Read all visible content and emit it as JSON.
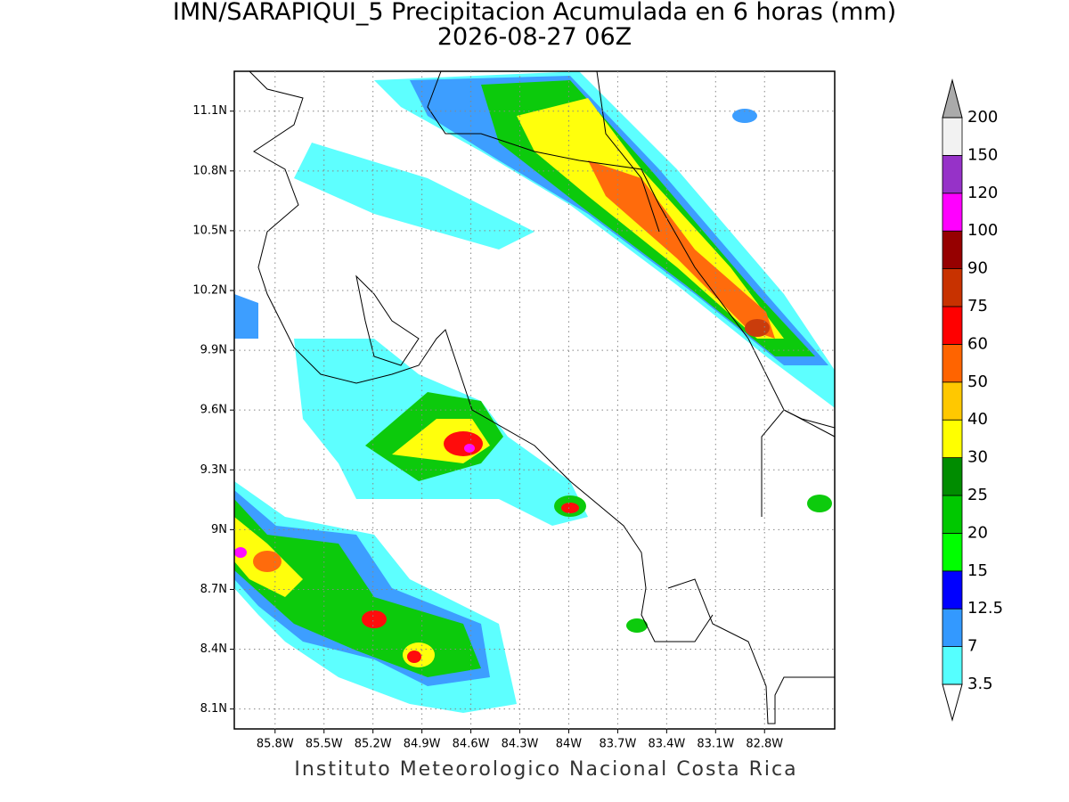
{
  "title": "IMN/SARAPIQUI_5 Precipitacion Acumulada en 6 horas (mm)",
  "subtitle": "2026-08-27 06Z",
  "map": {
    "lon_range": [
      -86.05,
      -82.37
    ],
    "lat_range": [
      8.0,
      11.3
    ],
    "lat_ticks": [
      {
        "value": 11.1,
        "label": "11.1N"
      },
      {
        "value": 10.8,
        "label": "10.8N"
      },
      {
        "value": 10.5,
        "label": "10.5N"
      },
      {
        "value": 10.2,
        "label": "10.2N"
      },
      {
        "value": 9.9,
        "label": "9.9N"
      },
      {
        "value": 9.6,
        "label": "9.6N"
      },
      {
        "value": 9.3,
        "label": "9.3N"
      },
      {
        "value": 9,
        "label": "9N"
      },
      {
        "value": 8.7,
        "label": "8.7N"
      },
      {
        "value": 8.4,
        "label": "8.4N"
      },
      {
        "value": 8.1,
        "label": "8.1N"
      }
    ],
    "lon_ticks": [
      {
        "value": -85.8,
        "label": "85.8W"
      },
      {
        "value": -85.5,
        "label": "85.5W"
      },
      {
        "value": -85.2,
        "label": "85.2W"
      },
      {
        "value": -84.9,
        "label": "84.9W"
      },
      {
        "value": -84.6,
        "label": "84.6W"
      },
      {
        "value": -84.3,
        "label": "84.3W"
      },
      {
        "value": -84,
        "label": "84W"
      },
      {
        "value": -83.7,
        "label": "83.7W"
      },
      {
        "value": -83.4,
        "label": "83.4W"
      },
      {
        "value": -83.1,
        "label": "83.1W"
      },
      {
        "value": -82.8,
        "label": "82.8W"
      }
    ]
  },
  "colorbar": {
    "levels": [
      3.5,
      7,
      12.5,
      15,
      20,
      25,
      30,
      40,
      50,
      60,
      75,
      90,
      100,
      120,
      150,
      200
    ],
    "colors": [
      "#55ffff",
      "#3399ff",
      "#0000ff",
      "#00ff00",
      "#00c800",
      "#008c00",
      "#ffff00",
      "#ffc800",
      "#ff6400",
      "#ff0000",
      "#c83200",
      "#960000",
      "#ff00ff",
      "#9632c8",
      "#f2f2f2"
    ],
    "under_color": "#ffffff",
    "over_color": "#aaaaaa"
  },
  "footer": "Instituto Meteorologico Nacional Costa Rica"
}
